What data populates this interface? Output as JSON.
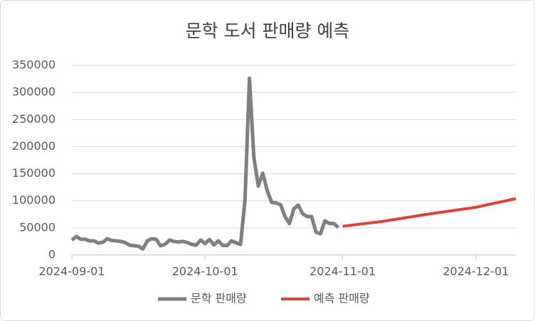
{
  "chart_data": {
    "type": "line",
    "title": "문학 도서 판매량 예측",
    "series": [
      {
        "name": "문학 판매량",
        "color": "#7f7f7f",
        "x": [
          "2024-09-01",
          "2024-09-02",
          "2024-09-03",
          "2024-09-04",
          "2024-09-05",
          "2024-09-06",
          "2024-09-07",
          "2024-09-08",
          "2024-09-09",
          "2024-09-10",
          "2024-09-11",
          "2024-09-12",
          "2024-09-13",
          "2024-09-14",
          "2024-09-15",
          "2024-09-16",
          "2024-09-17",
          "2024-09-18",
          "2024-09-19",
          "2024-09-20",
          "2024-09-21",
          "2024-09-22",
          "2024-09-23",
          "2024-09-24",
          "2024-09-25",
          "2024-09-26",
          "2024-09-27",
          "2024-09-28",
          "2024-09-29",
          "2024-09-30",
          "2024-10-01",
          "2024-10-02",
          "2024-10-03",
          "2024-10-04",
          "2024-10-05",
          "2024-10-06",
          "2024-10-07",
          "2024-10-08",
          "2024-10-09",
          "2024-10-10",
          "2024-10-11",
          "2024-10-12",
          "2024-10-13",
          "2024-10-14",
          "2024-10-15",
          "2024-10-16",
          "2024-10-17",
          "2024-10-18",
          "2024-10-19",
          "2024-10-20",
          "2024-10-21",
          "2024-10-22",
          "2024-10-23",
          "2024-10-24",
          "2024-10-25",
          "2024-10-26",
          "2024-10-27",
          "2024-10-28",
          "2024-10-29",
          "2024-10-30",
          "2024-10-31"
        ],
        "values": [
          27500,
          34000,
          29000,
          29000,
          26000,
          26000,
          22000,
          23500,
          30000,
          26500,
          26000,
          25000,
          23000,
          18000,
          17000,
          16000,
          11000,
          26000,
          30000,
          29000,
          17000,
          19500,
          27500,
          25000,
          24000,
          25000,
          23000,
          19500,
          18000,
          27500,
          21000,
          28500,
          18500,
          26000,
          17500,
          17500,
          26000,
          22500,
          19500,
          101000,
          326000,
          180000,
          127000,
          151000,
          119000,
          97000,
          96000,
          93000,
          71000,
          58000,
          85000,
          92000,
          76000,
          71000,
          71000,
          42000,
          39000,
          63000,
          58000,
          58000,
          51000
        ]
      },
      {
        "name": "예측 판매량",
        "color": "#e0403a",
        "x": [
          "2024-11-01",
          "2024-11-10",
          "2024-11-20",
          "2024-12-01",
          "2024-12-10"
        ],
        "values": [
          53000,
          62000,
          75000,
          88000,
          104000
        ]
      }
    ],
    "xlim": [
      "2024-09-01",
      "2024-12-10"
    ],
    "xticks": [
      "2024-09-01",
      "2024-10-01",
      "2024-11-01",
      "2024-12-01"
    ],
    "ylim": [
      0,
      350000
    ],
    "yticks": [
      0,
      50000,
      100000,
      150000,
      200000,
      250000,
      300000,
      350000
    ],
    "grid": true,
    "legend": "bottom"
  }
}
